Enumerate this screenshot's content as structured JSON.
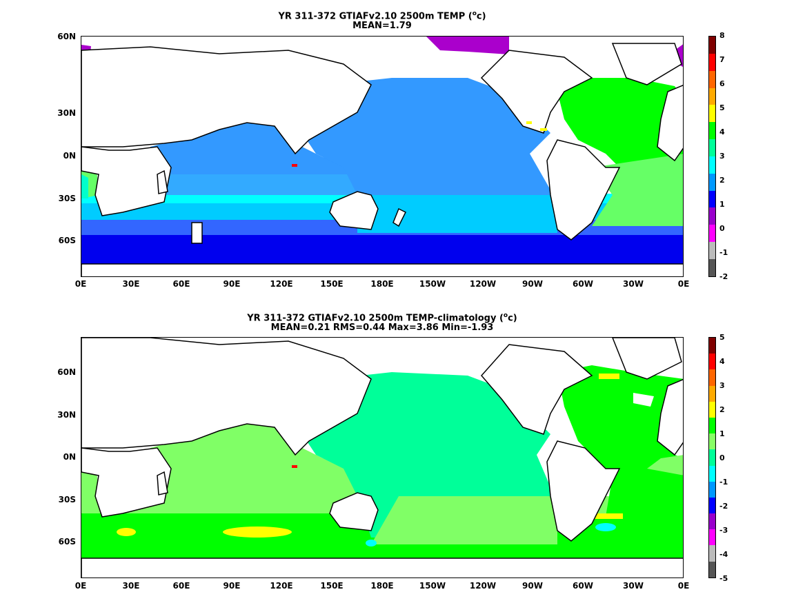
{
  "panels": [
    {
      "title_main": "YR 311-372 GTIAFv2.10 2500m TEMP (",
      "title_sup": "o",
      "title_end": "c)",
      "subtitle": "MEAN=1.79",
      "colorbar": {
        "labels": [
          "8",
          "7",
          "6",
          "5",
          "4",
          "3",
          "2",
          "1",
          "0",
          "-1",
          "-2"
        ],
        "colors": [
          "#7f0000",
          "#ff0000",
          "#ff6600",
          "#ffaa00",
          "#ffff00",
          "#00ff00",
          "#00ff99",
          "#00ffff",
          "#0099ff",
          "#0000ff",
          "#9900cc",
          "#ff00ff",
          "#bbbbbb",
          "#555555"
        ]
      }
    },
    {
      "title_main": "YR 311-372 GTIAFv2.10 2500m TEMP-climatology (",
      "title_sup": "o",
      "title_end": "c)",
      "subtitle": "MEAN=0.21   RMS=0.44   Max=3.86   Min=-1.93",
      "colorbar": {
        "labels": [
          "5",
          "4",
          "3",
          "2",
          "1",
          "0",
          "-1",
          "-2",
          "-3",
          "-4",
          "-5"
        ],
        "colors": [
          "#7f0000",
          "#ff0000",
          "#ff6600",
          "#ffaa00",
          "#ffff00",
          "#00ff00",
          "#88ff66",
          "#00ff99",
          "#00ffff",
          "#0099ff",
          "#0000ff",
          "#9900cc",
          "#ff00ff",
          "#bbbbbb",
          "#555555"
        ]
      }
    }
  ],
  "axes": {
    "lat_labels": [
      "60N",
      "30N",
      "0N",
      "30S",
      "60S"
    ],
    "lon_labels": [
      "0E",
      "30E",
      "60E",
      "90E",
      "120E",
      "150E",
      "180E",
      "150W",
      "120W",
      "90W",
      "60W",
      "30W",
      "0E"
    ]
  },
  "map_colors": {
    "top": {
      "deep_ocean": "#3399ff",
      "south_band": "#00ccff",
      "cyan_band": "#00ffff",
      "mid_blue": "#3366ff",
      "polar": "#0000ee",
      "atlantic": "#00ff00",
      "atlantic_south": "#66ff66",
      "arctic": "#aa00cc",
      "red_spot": "#ff0000",
      "yellow_spot": "#ffff00"
    },
    "bottom": {
      "pacific": "#00ff99",
      "light_green": "#80ff66",
      "green": "#00ff00",
      "yellow": "#ffff00",
      "cyan": "#00ffff",
      "red_spot": "#ff0000"
    }
  }
}
